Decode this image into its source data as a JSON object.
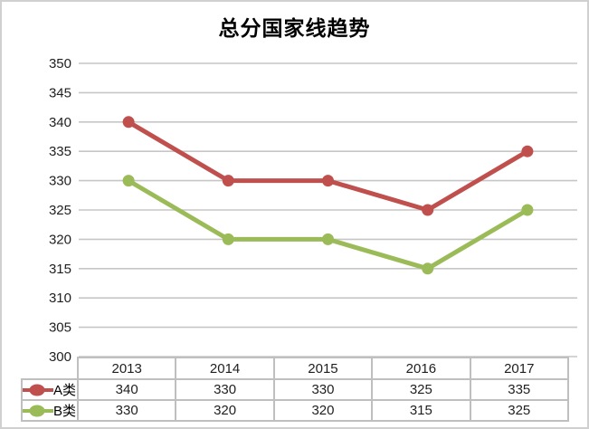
{
  "chart_data": {
    "type": "line",
    "title": "总分国家线趋势",
    "categories": [
      "2013",
      "2014",
      "2015",
      "2016",
      "2017"
    ],
    "series": [
      {
        "name": "A类",
        "color": "#C0504D",
        "values": [
          340,
          330,
          330,
          325,
          335
        ]
      },
      {
        "name": "B类",
        "color": "#9BBB59",
        "values": [
          330,
          320,
          320,
          315,
          325
        ]
      }
    ],
    "xlabel": "",
    "ylabel": "",
    "ylim": [
      300,
      350
    ],
    "ytick_step": 5,
    "grid": "horizontal",
    "gridline_color": "#C6C6C6",
    "axis_label_color": "#1F1F1F",
    "marker": "circle",
    "legend_position": "data-table-left",
    "data_table_shown": true,
    "table_border_color": "#BFBFBF",
    "background_color": "#FFFFFF",
    "window_border_color": "#D0D0D0"
  }
}
